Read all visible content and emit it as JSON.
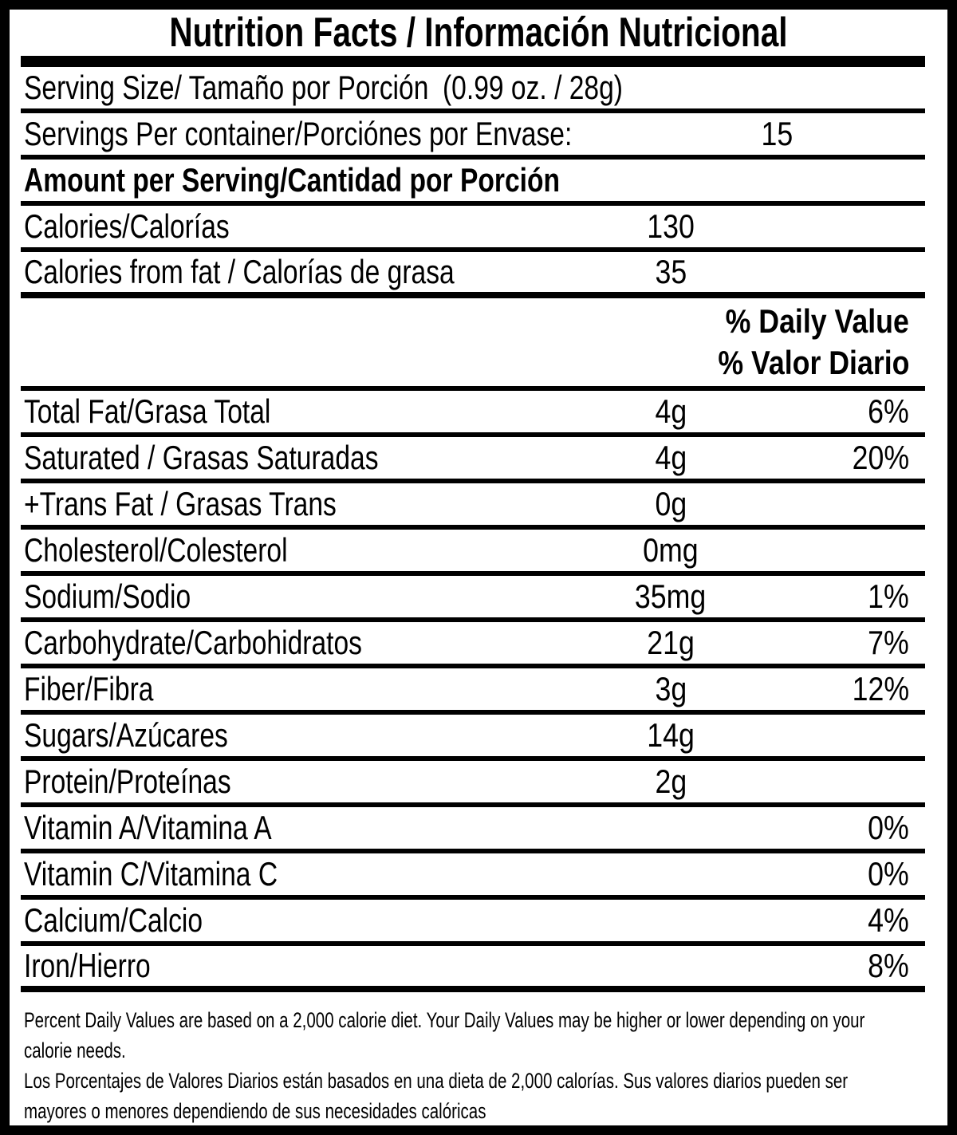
{
  "title": "Nutrition Facts / Información Nutricional",
  "colors": {
    "ink": "#000000",
    "paper": "#ffffff"
  },
  "dv_header": {
    "line1": "% Daily Value",
    "line2": "% Valor Diario"
  },
  "rows_top": [
    {
      "label": "Serving Size/ Tamaño por Porción",
      "inline": "(0.99 oz. / 28g)"
    },
    {
      "label": "Servings Per container/Porciónes por Envase:",
      "amount": "15"
    },
    {
      "label": "Amount per Serving/Cantidad por Porción",
      "bold": true
    },
    {
      "label": "Calories/Calorías",
      "amount": "130"
    },
    {
      "label": "Calories from fat / Calorías de grasa",
      "amount": "35"
    }
  ],
  "rows_main": [
    {
      "label": "Total Fat/Grasa Total",
      "amount": "4g",
      "dv": "6%"
    },
    {
      "label": "Saturated / Grasas Saturadas",
      "amount": "4g",
      "dv": "20%"
    },
    {
      "label": "+Trans Fat / Grasas Trans",
      "amount": "0g"
    },
    {
      "label": "Cholesterol/Colesterol",
      "amount": "0mg"
    },
    {
      "label": "Sodium/Sodio",
      "amount": "35mg",
      "dv": "1%"
    },
    {
      "label": "Carbohydrate/Carbohidratos",
      "amount": "21g",
      "dv": "7%"
    },
    {
      "label": "Fiber/Fibra",
      "amount": "3g",
      "dv": "12%"
    },
    {
      "label": "Sugars/Azúcares",
      "amount": "14g"
    },
    {
      "label": "Protein/Proteínas",
      "amount": "2g"
    },
    {
      "label": "Vitamin A/Vitamina A",
      "dv": "0%"
    },
    {
      "label": "Vitamin C/Vitamina C",
      "dv": "0%"
    },
    {
      "label": "Calcium/Calcio",
      "dv": "4%"
    },
    {
      "label": "Iron/Hierro",
      "dv": "8%"
    }
  ],
  "footnote": {
    "lines": [
      "Percent Daily Values are based on a 2,000 calorie diet. Your Daily Values may be higher or lower depending on your",
      "calorie needs.",
      "Los Porcentajes de Valores Diarios están basados en una dieta de 2,000 calorías. Sus valores diarios pueden ser",
      "mayores o menores dependiendo de sus necesidades calóricas"
    ]
  }
}
